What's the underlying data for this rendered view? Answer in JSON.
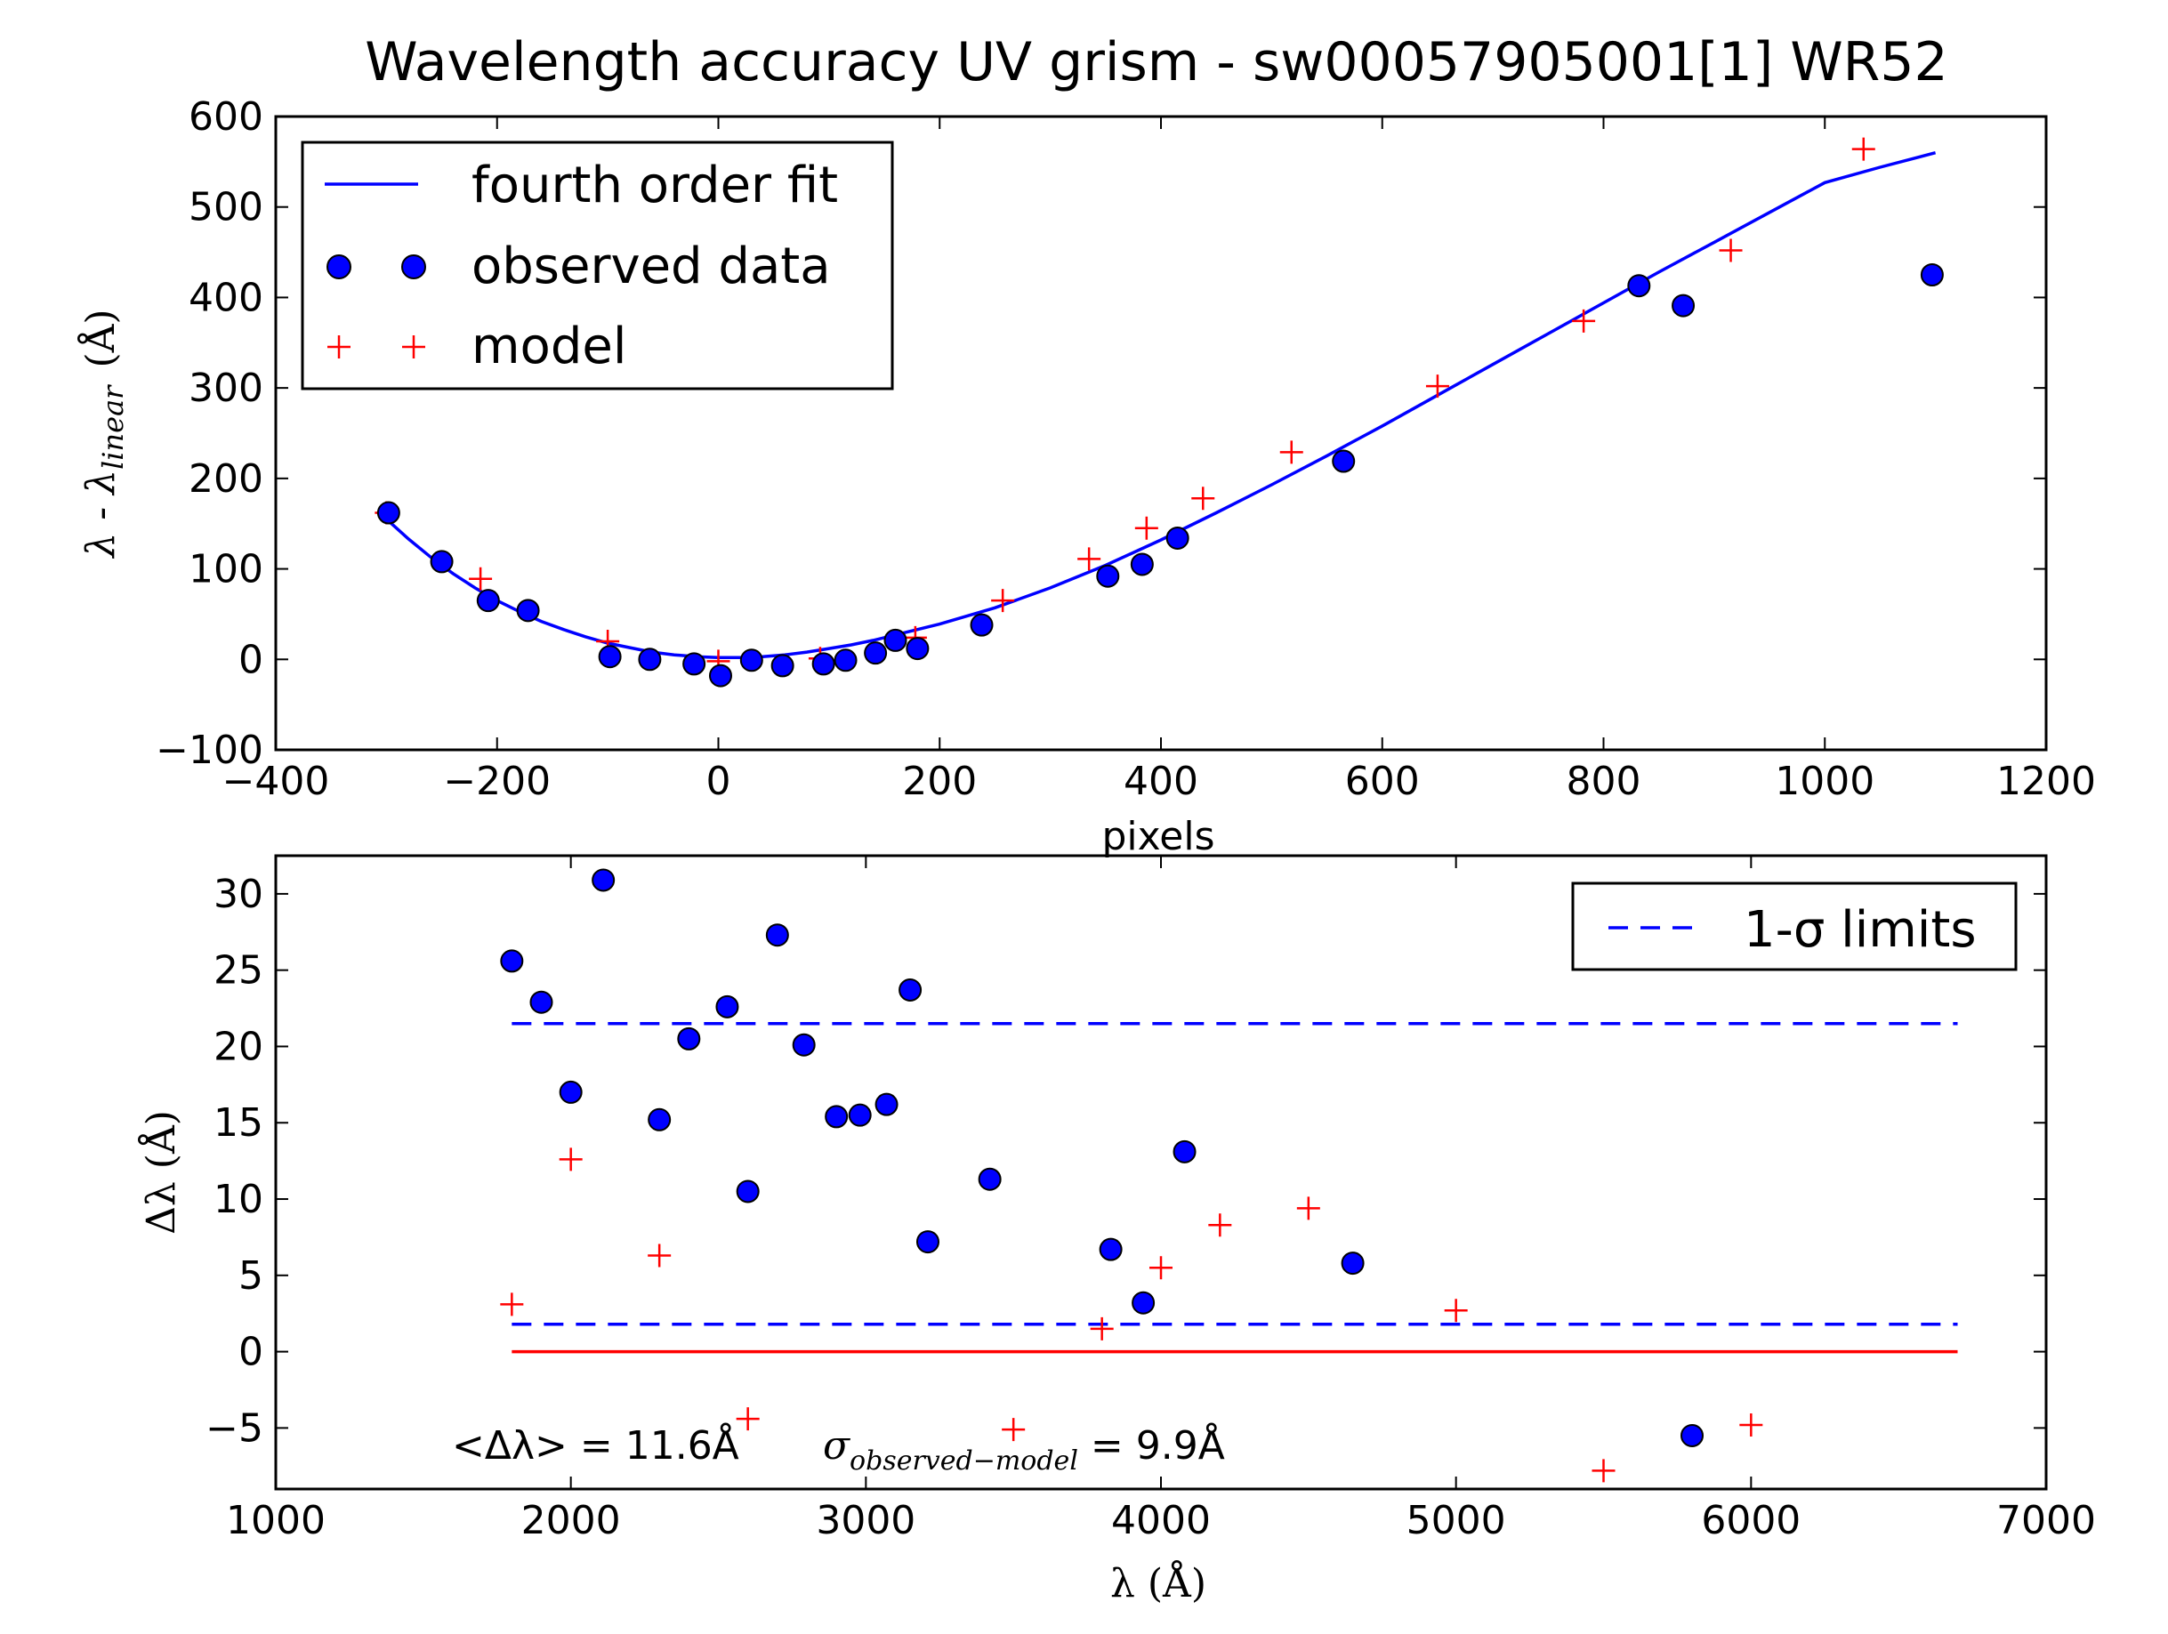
{
  "figure_title": "Wavelength accuracy UV grism - sw00057905001[1] WR52",
  "colors": {
    "fit_line": "#0000ff",
    "observed": "#0000ff",
    "model": "#ff0000",
    "zero_line": "#ff0000",
    "sigma_limits": "#0000ff"
  },
  "chart_data": [
    {
      "type": "scatter",
      "title": "Wavelength accuracy UV grism - sw00057905001[1] WR52",
      "xlabel": "pixels",
      "ylabel": "λ - λ",
      "ylabel_sub": "linear",
      "ylabel_unit": "(Å)",
      "xlim": [
        -400,
        1200
      ],
      "ylim": [
        -100,
        600
      ],
      "xticks": [
        "−400",
        "−200",
        "0",
        "200",
        "400",
        "600",
        "800",
        "1000",
        "1200"
      ],
      "xtick_values": [
        -400,
        -200,
        0,
        200,
        400,
        600,
        800,
        1000,
        1200
      ],
      "yticks": [
        "600",
        "500",
        "400",
        "300",
        "200",
        "100",
        "0",
        "−100"
      ],
      "ytick_values": [
        600,
        500,
        400,
        300,
        200,
        100,
        0,
        -100
      ],
      "legend_position": "top-left",
      "series": [
        {
          "name": "fourth order fit",
          "kind": "line",
          "x": [
            -300,
            -280,
            -260,
            -240,
            -220,
            -200,
            -180,
            -160,
            -140,
            -120,
            -100,
            -80,
            -60,
            -40,
            -20,
            0,
            20,
            40,
            60,
            80,
            100,
            120,
            140,
            160,
            180,
            200,
            250,
            300,
            350,
            400,
            450,
            500,
            550,
            600,
            650,
            700,
            750,
            800,
            850,
            900,
            950,
            1000,
            1050,
            1100
          ],
          "y": [
            155,
            133,
            113,
            95,
            79,
            65,
            53,
            42,
            33,
            25,
            18,
            13,
            8,
            5,
            3,
            2,
            2,
            3,
            5,
            8,
            12,
            16,
            21,
            27,
            33,
            39,
            57,
            79,
            104,
            132,
            162,
            193,
            225,
            258,
            292,
            326,
            360,
            394,
            428,
            461,
            494,
            527,
            544,
            560
          ]
        },
        {
          "name": "observed data",
          "kind": "circle",
          "x": [
            -298,
            -250,
            -208,
            -172,
            -98,
            -62,
            -22,
            2,
            30,
            58,
            95,
            115,
            142,
            160,
            180,
            238,
            352,
            383,
            415,
            565,
            832,
            872,
            1097
          ],
          "y": [
            162,
            108,
            65,
            54,
            3,
            0,
            -5,
            -18,
            -1,
            -7,
            -5,
            -1,
            7,
            21,
            12,
            38,
            92,
            105,
            134,
            219,
            413,
            391,
            425
          ]
        },
        {
          "name": "model",
          "kind": "plus",
          "x": [
            -300,
            -215,
            -100,
            0,
            92,
            178,
            257,
            335,
            387,
            438,
            518,
            650,
            782,
            915,
            1035
          ],
          "y": [
            162,
            89,
            20,
            -2,
            1,
            24,
            65,
            111,
            145,
            178,
            229,
            302,
            374,
            452,
            564
          ]
        }
      ]
    },
    {
      "type": "scatter",
      "xlabel": "λ (Å)",
      "ylabel": "Δλ (Å)",
      "xlim": [
        1000,
        7000
      ],
      "ylim": [
        -9,
        32.5
      ],
      "xticks": [
        "1000",
        "2000",
        "3000",
        "4000",
        "5000",
        "6000",
        "7000"
      ],
      "xtick_values": [
        1000,
        2000,
        3000,
        4000,
        5000,
        6000,
        7000
      ],
      "yticks": [
        "30",
        "25",
        "20",
        "15",
        "10",
        "5",
        "0",
        "−5"
      ],
      "ytick_values": [
        30,
        25,
        20,
        15,
        10,
        5,
        0,
        -5
      ],
      "legend_position": "top-right",
      "annotation_mean": "<Δλ> = 11.6Å",
      "annotation_sigma_prefix": "σ",
      "annotation_sigma_sub": "observed−model",
      "annotation_sigma_value": " = 9.9Å",
      "series": [
        {
          "name": "1-σ limits",
          "kind": "dashed-hlines",
          "y": [
            21.5,
            1.8
          ],
          "x_range": [
            1800,
            6700
          ]
        },
        {
          "kind": "hline",
          "y": [
            0
          ],
          "x_range": [
            1800,
            6700
          ]
        },
        {
          "kind": "circle",
          "x": [
            1800,
            1900,
            2000,
            2110,
            2300,
            2400,
            2530,
            2600,
            2700,
            2790,
            2900,
            2980,
            3070,
            3150,
            3210,
            3420,
            3830,
            3940,
            4080,
            4650,
            5800
          ],
          "y": [
            25.6,
            22.9,
            17.0,
            30.9,
            15.2,
            20.5,
            22.6,
            10.5,
            27.3,
            20.1,
            15.4,
            15.5,
            16.2,
            23.7,
            7.2,
            11.3,
            6.7,
            3.2,
            13.1,
            5.8,
            -5.5
          ]
        },
        {
          "kind": "plus",
          "x": [
            1800,
            2000,
            2300,
            2600,
            3500,
            3800,
            4000,
            4200,
            4500,
            5000,
            5500,
            6000
          ],
          "y": [
            3.1,
            12.6,
            6.3,
            -4.4,
            -5.1,
            1.5,
            5.5,
            8.3,
            9.4,
            2.7,
            -7.8,
            -4.8
          ]
        }
      ]
    }
  ]
}
